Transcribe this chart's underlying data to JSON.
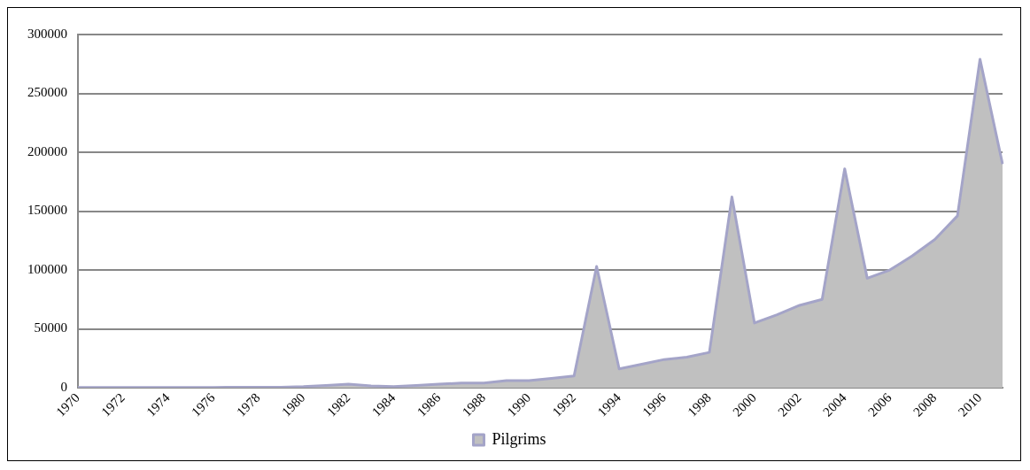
{
  "chart_data": {
    "type": "area",
    "categories": [
      "1970",
      null,
      "1972",
      null,
      "1974",
      null,
      "1976",
      null,
      "1978",
      null,
      "1980",
      null,
      "1982",
      null,
      "1984",
      null,
      "1986",
      null,
      "1988",
      null,
      "1990",
      null,
      "1992",
      null,
      "1994",
      null,
      "1996",
      null,
      "1998",
      null,
      "2000",
      null,
      "2002",
      null,
      "2004",
      null,
      "2006",
      null,
      "2008",
      null,
      "2010",
      null
    ],
    "series": [
      {
        "name": "Pilgrims",
        "color": "#c0c0c0",
        "values": [
          300,
          300,
          300,
          300,
          300,
          300,
          300,
          400,
          400,
          500,
          1000,
          2000,
          3000,
          1500,
          1000,
          2000,
          3000,
          4000,
          4000,
          6000,
          6000,
          8000,
          10000,
          103000,
          16000,
          20000,
          24000,
          26000,
          30000,
          162000,
          55000,
          62000,
          70000,
          75000,
          186000,
          93000,
          100000,
          112000,
          126000,
          146000,
          279000,
          190000
        ]
      }
    ],
    "ylim": [
      0,
      300000
    ],
    "yticks": [
      0,
      50000,
      100000,
      150000,
      200000,
      250000,
      300000
    ],
    "grid": "y",
    "legend": "bottom"
  }
}
